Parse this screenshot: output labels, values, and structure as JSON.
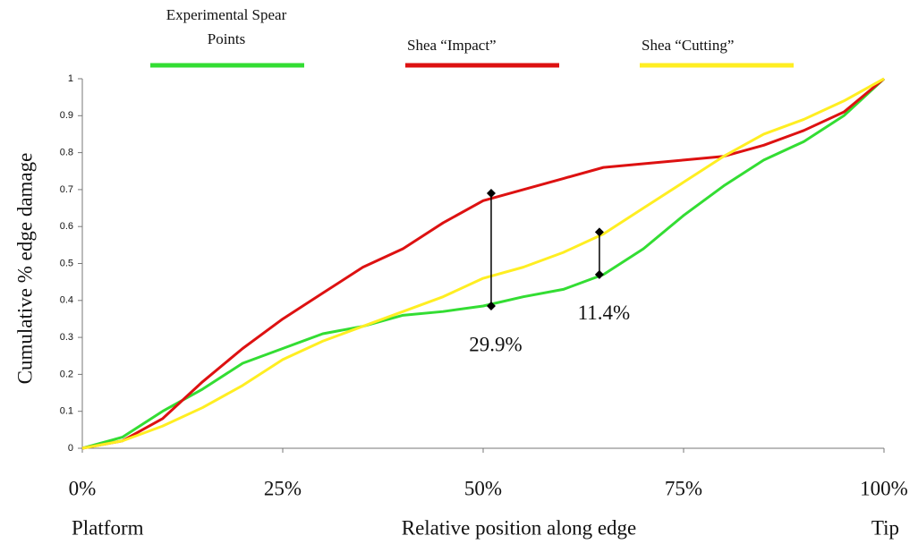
{
  "chart_data": {
    "type": "line",
    "y_label": "Cumulative % edge damage",
    "x_label": "Relative position along edge",
    "x_end_labels": [
      "Platform",
      "Tip"
    ],
    "x": [
      0,
      5,
      10,
      15,
      20,
      25,
      30,
      35,
      40,
      45,
      50,
      55,
      60,
      65,
      70,
      75,
      80,
      85,
      90,
      95,
      100
    ],
    "series": [
      {
        "name": "Experimental Spear Points",
        "color": "#33dd33",
        "values": [
          0,
          0.03,
          0.1,
          0.16,
          0.23,
          0.27,
          0.31,
          0.33,
          0.36,
          0.37,
          0.385,
          0.41,
          0.43,
          0.47,
          0.54,
          0.63,
          0.71,
          0.78,
          0.83,
          0.9,
          1
        ]
      },
      {
        "name": "Shea “Impact”",
        "color": "#dd1111",
        "values": [
          0,
          0.02,
          0.08,
          0.18,
          0.27,
          0.35,
          0.42,
          0.49,
          0.54,
          0.61,
          0.67,
          0.7,
          0.73,
          0.76,
          0.77,
          0.78,
          0.79,
          0.82,
          0.86,
          0.91,
          1
        ]
      },
      {
        "name": "Shea “Cutting”",
        "color": "#ffee22",
        "values": [
          0,
          0.02,
          0.06,
          0.11,
          0.17,
          0.24,
          0.29,
          0.33,
          0.37,
          0.41,
          0.46,
          0.49,
          0.53,
          0.58,
          0.65,
          0.72,
          0.79,
          0.85,
          0.89,
          0.94,
          1
        ]
      }
    ],
    "annotations": [
      {
        "text": "29.9%",
        "x": 51,
        "y": [
          0.385,
          0.69
        ]
      },
      {
        "text": "11.4%",
        "x": 64.5,
        "y": [
          0.47,
          0.585
        ]
      }
    ],
    "xlim": [
      0,
      100
    ],
    "xticks": [
      {
        "value": 0,
        "label": "0%"
      },
      {
        "value": 25,
        "label": "25%"
      },
      {
        "value": 50,
        "label": "50%"
      },
      {
        "value": 75,
        "label": "75%"
      },
      {
        "value": 100,
        "label": "100%"
      }
    ],
    "ylim": [
      0,
      1
    ],
    "yticks": [
      0,
      0.1,
      0.2,
      0.3,
      0.4,
      0.5,
      0.6,
      0.7,
      0.8,
      0.9,
      1
    ]
  }
}
